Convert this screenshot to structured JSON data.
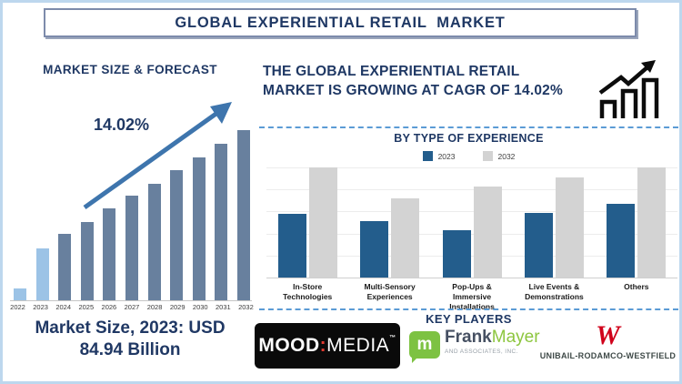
{
  "page": {
    "background": "#ffffff",
    "border_color": "#bdd7ee"
  },
  "header": {
    "title": "GLOBAL EXPERIENTIAL RETAIL  MARKET",
    "text_color": "#1f3864"
  },
  "left_panel": {
    "section_title": "MARKET SIZE & FORECAST",
    "growth_annotation": "14.02%",
    "caption_line1": "Market Size, 2023: USD",
    "caption_line2": "84.94 Billion"
  },
  "right_panel": {
    "heading": "THE GLOBAL EXPERIENTIAL RETAIL MARKET IS GROWING AT CAGR OF 14.02%",
    "by_type_title": "BY TYPE OF EXPERIENCE",
    "key_players_title": "KEY PLAYERS"
  },
  "key_players": {
    "mood_media": {
      "part_bold": "MOOD",
      "colon": ":",
      "part_light": "MEDIA",
      "tm": "™",
      "bg_color": "#0a0a0a",
      "colon_color": "#e03a2f"
    },
    "frank_mayer": {
      "badge_letter": "m",
      "name_dark": "Frank",
      "name_green": "Mayer",
      "subtitle": "AND ASSOCIATES, INC.",
      "green_color": "#8dc63f"
    },
    "urw": {
      "monogram": "W",
      "wordmark": "UNIBAIL-RODAMCO-WESTFIELD",
      "red_color": "#d0021b"
    }
  },
  "chart_data": [
    {
      "id": "market-size-forecast",
      "type": "bar",
      "title": "MARKET SIZE & FORECAST",
      "categories": [
        "2022",
        "2023",
        "2024",
        "2025",
        "2026",
        "2027",
        "2028",
        "2029",
        "2030",
        "2031",
        "2032"
      ],
      "values_relative_pct": [
        7,
        30,
        38,
        45,
        53,
        60,
        67,
        75,
        82,
        90,
        98
      ],
      "known_values": {
        "2023": "USD 84.94 Billion"
      },
      "cagr": "14.02%",
      "annotation": "14.02%",
      "trend_arrow": true,
      "bar_color": "#68809e",
      "highlight_color": "#9cc3e6",
      "highlight_years": [
        "2022",
        "2023"
      ],
      "xlabel": "",
      "ylabel": "",
      "grid": false,
      "y_axis_labels": false
    },
    {
      "id": "by-type-of-experience",
      "type": "bar",
      "grouped": true,
      "title": "BY TYPE OF EXPERIENCE",
      "categories": [
        "In-Store Technologies",
        "Multi-Sensory Experiences",
        "Pop-Ups & Immersive Installations",
        "Live Events & Demonstrations",
        "Others"
      ],
      "series": [
        {
          "name": "2023",
          "color": "#235d8c",
          "values_relative_pct": [
            58,
            51,
            43,
            59,
            67
          ]
        },
        {
          "name": "2032",
          "color": "#d3d3d3",
          "values_relative_pct": [
            100,
            72,
            83,
            91,
            100
          ]
        }
      ],
      "legend_position": "top",
      "grid": true,
      "gridline_count": 5,
      "ylim": [
        0,
        100
      ],
      "y_axis_labels": false
    }
  ]
}
